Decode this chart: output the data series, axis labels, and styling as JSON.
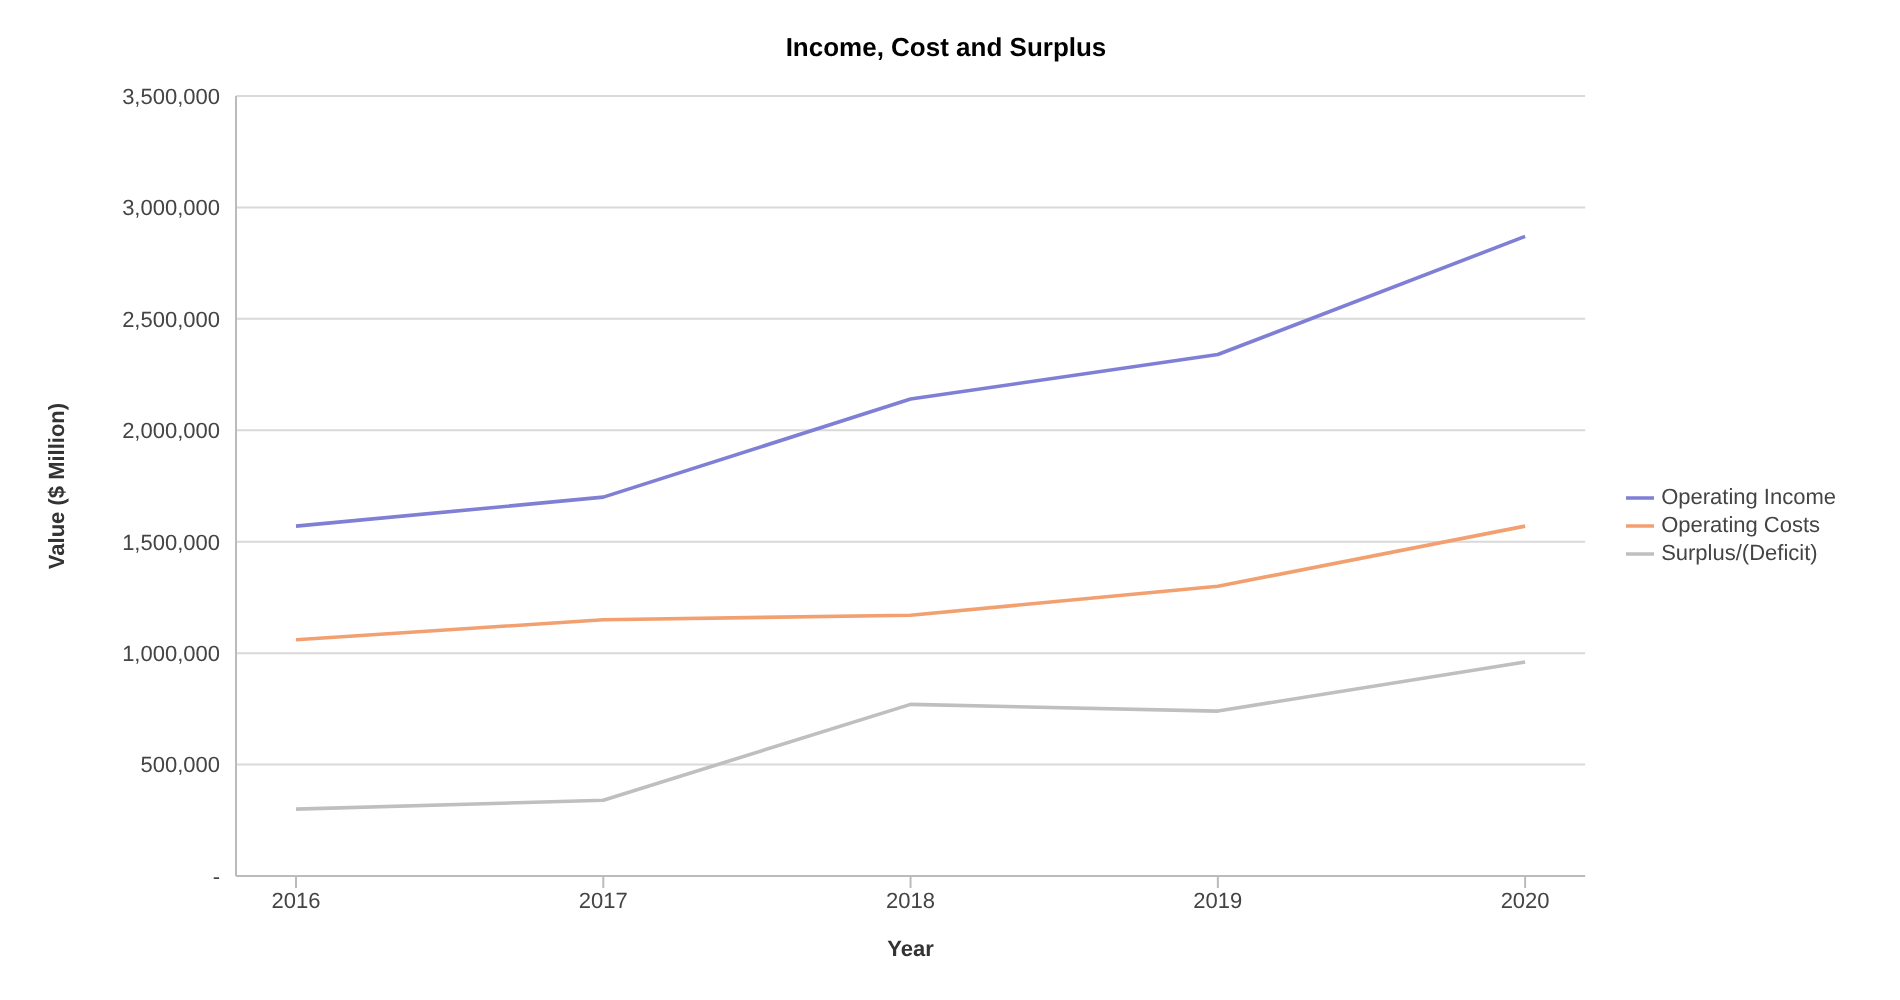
{
  "chart_data": {
    "type": "line",
    "title": "Income, Cost and Surplus",
    "xlabel": "Year",
    "ylabel": "Value ($ Million)",
    "categories": [
      "2016",
      "2017",
      "2018",
      "2019",
      "2020"
    ],
    "series": [
      {
        "name": "Operating Income",
        "color": "#7f7fd6",
        "values": [
          1570000,
          1700000,
          2140000,
          2340000,
          2870000
        ]
      },
      {
        "name": "Operating Costs",
        "color": "#f2a070",
        "values": [
          1060000,
          1150000,
          1170000,
          1300000,
          1570000
        ]
      },
      {
        "name": "Surplus/(Deficit)",
        "color": "#bfbfbf",
        "values": [
          300000,
          340000,
          770000,
          740000,
          960000
        ]
      }
    ],
    "ylim": [
      0,
      3500000
    ],
    "yticks": [
      {
        "value": 0,
        "label": "-"
      },
      {
        "value": 500000,
        "label": "500,000"
      },
      {
        "value": 1000000,
        "label": "1,000,000"
      },
      {
        "value": 1500000,
        "label": "1,500,000"
      },
      {
        "value": 2000000,
        "label": "2,000,000"
      },
      {
        "value": 2500000,
        "label": "2,500,000"
      },
      {
        "value": 3000000,
        "label": "3,000,000"
      },
      {
        "value": 3500000,
        "label": "3,500,000"
      }
    ],
    "grid": "y",
    "legend": "right",
    "marker": "none",
    "line_style": "solid"
  }
}
